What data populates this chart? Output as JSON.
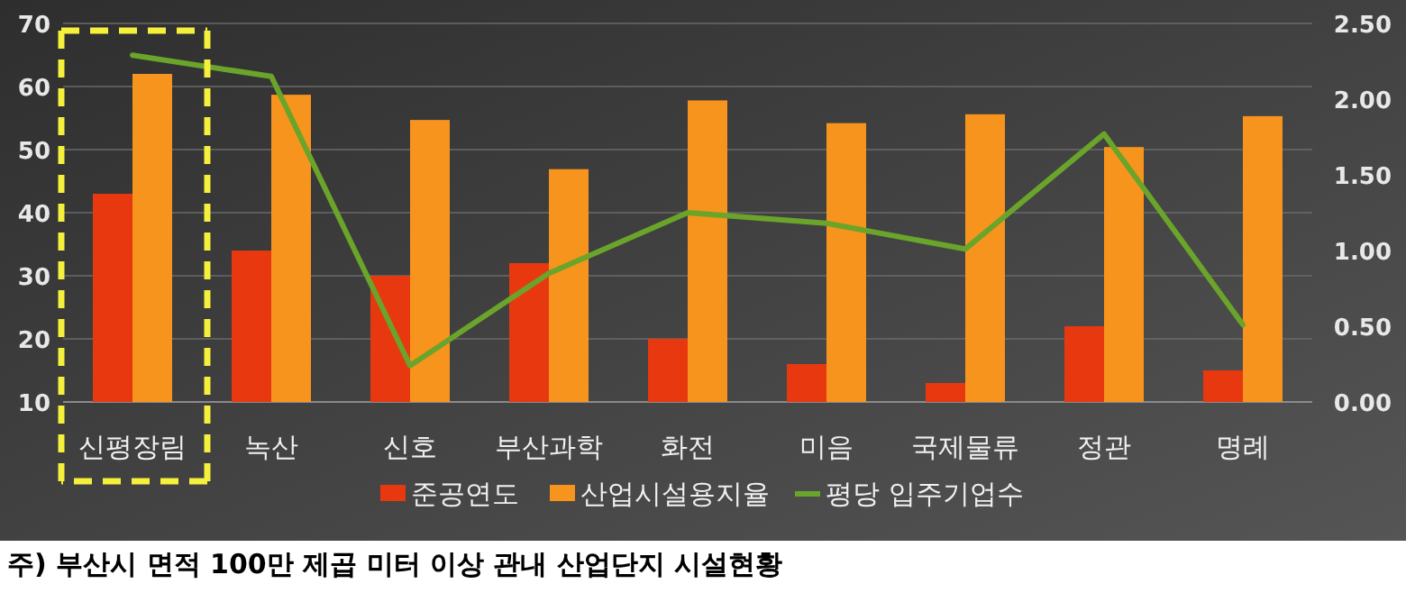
{
  "chart_data": {
    "type": "bar",
    "categories": [
      "신평장림",
      "녹산",
      "신호",
      "부산과학",
      "화전",
      "미음",
      "국제물류",
      "정관",
      "명례"
    ],
    "series": [
      {
        "name": "준공연도",
        "color": "#e8380f",
        "values": [
          43,
          34,
          30,
          32,
          20,
          16,
          13,
          22,
          15
        ]
      },
      {
        "name": "산업시설용지율",
        "color": "#f7941d",
        "values": [
          62,
          58.7,
          54.7,
          46.9,
          57.8,
          54.2,
          55.6,
          50.4,
          55.3
        ]
      },
      {
        "name": "평당 입주기업수",
        "type": "line",
        "axis": "y2",
        "color": "#6aa42a",
        "values": [
          2.29,
          2.15,
          0.24,
          0.85,
          1.25,
          1.18,
          1.01,
          1.77,
          0.51
        ]
      }
    ],
    "ylim": [
      10,
      70
    ],
    "yticks": [
      10,
      20,
      30,
      40,
      50,
      60,
      70
    ],
    "y2lim": [
      0,
      2.5
    ],
    "y2ticks": [
      {
        "value": 0,
        "label": "0.00"
      },
      {
        "value": 0.5,
        "label": "0.50"
      },
      {
        "value": 1,
        "label": "1.00"
      },
      {
        "value": 1.5,
        "label": "1.50"
      },
      {
        "value": 2,
        "label": "2.00"
      },
      {
        "value": 2.5,
        "label": "2.50"
      }
    ],
    "grid": "y",
    "legend": "bottom",
    "annotations": [
      "주) 부산시 면적 100만 제곱 미터 이상 관내 산업단지 시설현황"
    ]
  }
}
